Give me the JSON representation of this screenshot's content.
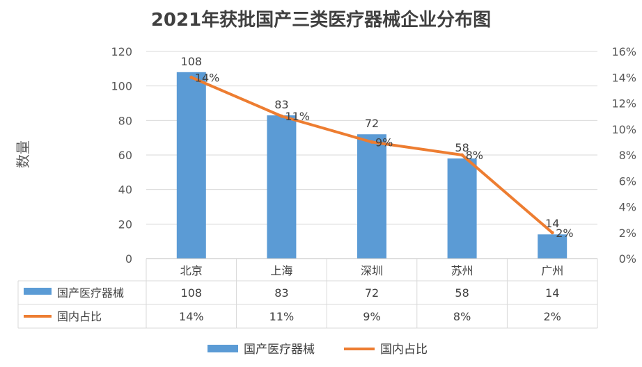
{
  "chart_data": {
    "type": "bar",
    "title": "2021年获批国产三类医疗器械企业分布图",
    "ylabel": "数量",
    "categories": [
      "北京",
      "上海",
      "深圳",
      "苏州",
      "广州"
    ],
    "ylim": [
      0,
      120
    ],
    "y_ticks": [
      "0",
      "20",
      "40",
      "60",
      "80",
      "100",
      "120"
    ],
    "y2lim": [
      0,
      16
    ],
    "y2_ticks": [
      "0%",
      "2%",
      "4%",
      "6%",
      "8%",
      "10%",
      "12%",
      "14%",
      "16%"
    ],
    "series": [
      {
        "name": "国产医疗器械",
        "type": "bar",
        "axis": "left",
        "color": "#5B9BD5",
        "values": [
          108,
          83,
          72,
          58,
          14
        ],
        "labels": [
          "108",
          "83",
          "72",
          "58",
          "14"
        ]
      },
      {
        "name": "国内占比",
        "type": "line",
        "axis": "right",
        "color": "#ED7D31",
        "values": [
          14,
          11,
          9,
          8,
          2
        ],
        "labels": [
          "14%",
          "11%",
          "9%",
          "8%",
          "2%"
        ]
      }
    ],
    "grid": true,
    "data_table": true,
    "legend": "bottom"
  }
}
